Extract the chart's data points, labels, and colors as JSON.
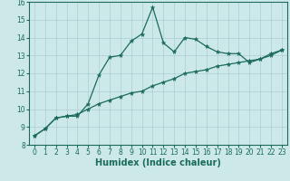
{
  "xlabel": "Humidex (Indice chaleur)",
  "background_color": "#cce8e8",
  "line_color": "#1a6b5a",
  "grid_color": "#aacfcf",
  "x_values": [
    0,
    1,
    2,
    3,
    4,
    5,
    6,
    7,
    8,
    9,
    10,
    11,
    12,
    13,
    14,
    15,
    16,
    17,
    18,
    19,
    20,
    21,
    22,
    23
  ],
  "y_line1": [
    8.5,
    8.9,
    9.5,
    9.6,
    9.6,
    10.3,
    11.9,
    12.9,
    13.0,
    13.8,
    14.2,
    15.7,
    13.7,
    13.2,
    14.0,
    13.9,
    13.5,
    13.2,
    13.1,
    13.1,
    12.6,
    12.8,
    13.1,
    13.3
  ],
  "y_line2": [
    8.5,
    8.9,
    9.5,
    9.6,
    9.7,
    10.0,
    10.3,
    10.5,
    10.7,
    10.9,
    11.0,
    11.3,
    11.5,
    11.7,
    12.0,
    12.1,
    12.2,
    12.4,
    12.5,
    12.6,
    12.7,
    12.8,
    13.0,
    13.3
  ],
  "ylim": [
    8,
    16
  ],
  "xlim": [
    -0.5,
    23.5
  ],
  "yticks": [
    8,
    9,
    10,
    11,
    12,
    13,
    14,
    15,
    16
  ],
  "xticks": [
    0,
    1,
    2,
    3,
    4,
    5,
    6,
    7,
    8,
    9,
    10,
    11,
    12,
    13,
    14,
    15,
    16,
    17,
    18,
    19,
    20,
    21,
    22,
    23
  ],
  "tick_fontsize": 5.5,
  "xlabel_fontsize": 7
}
